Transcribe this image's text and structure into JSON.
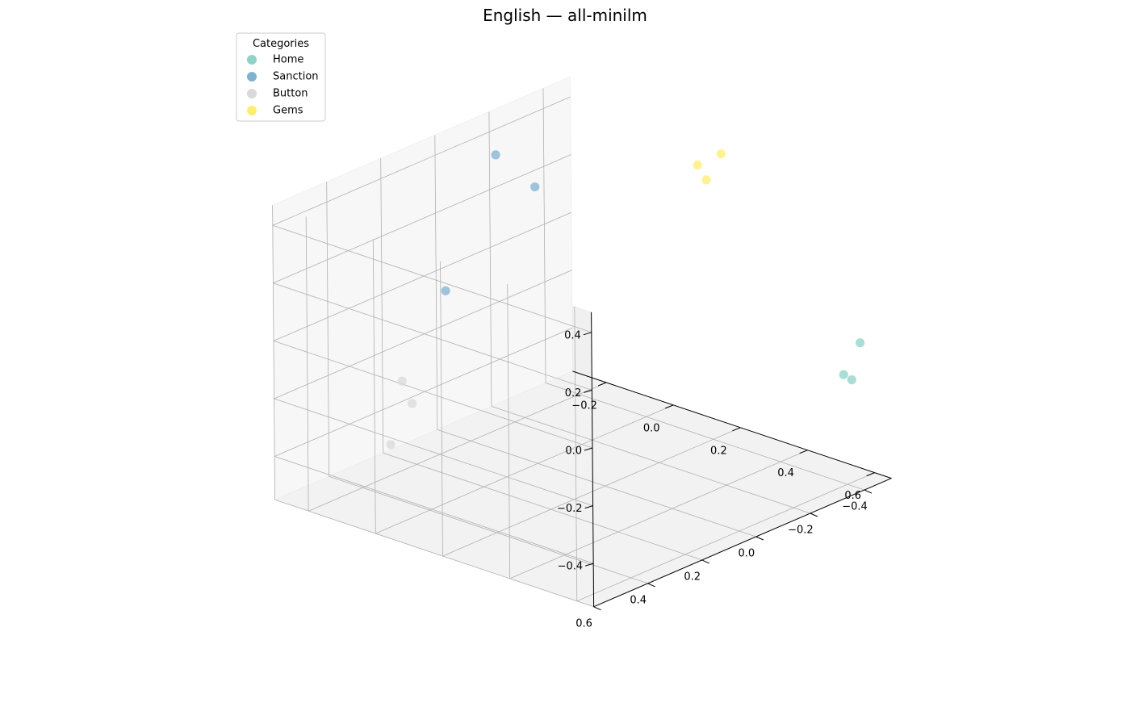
{
  "chart_data": {
    "type": "scatter",
    "projection": "3d",
    "title": "English — all-minilm",
    "legend": {
      "title": "Categories",
      "position": "top-left"
    },
    "grid": true,
    "x_ticks": [
      "−0.4",
      "−0.2",
      "0.0",
      "0.2",
      "0.4",
      "0.6"
    ],
    "y_ticks": [
      "−0.2",
      "0.0",
      "0.2",
      "0.4",
      "0.6"
    ],
    "z_ticks": [
      "−0.4",
      "−0.2",
      "0.0",
      "0.2",
      "0.4"
    ],
    "xlim": [
      -0.5,
      0.6
    ],
    "ylim": [
      -0.3,
      0.65
    ],
    "zlim": [
      -0.55,
      0.47
    ],
    "series": [
      {
        "name": "Home",
        "color": "#8dd3c7",
        "points": [
          [
            -0.45,
            0.6,
            -0.08
          ],
          [
            -0.48,
            0.55,
            -0.24
          ],
          [
            -0.45,
            0.55,
            -0.21
          ]
        ]
      },
      {
        "name": "Sanction",
        "color": "#80b1d3",
        "points": [
          [
            -0.12,
            -0.1,
            0.32
          ],
          [
            -0.1,
            -0.2,
            0.4
          ],
          [
            0.15,
            -0.15,
            0.05
          ]
        ]
      },
      {
        "name": "Button",
        "color": "#d9d9d9",
        "points": [
          [
            0.4,
            -0.05,
            -0.2
          ],
          [
            0.35,
            -0.12,
            -0.17
          ],
          [
            0.48,
            -0.05,
            -0.31
          ]
        ]
      },
      {
        "name": "Gems",
        "color": "#ffed6f",
        "points": [
          [
            -0.32,
            0.25,
            0.4
          ],
          [
            -0.35,
            0.2,
            0.42
          ],
          [
            -0.4,
            0.23,
            0.45
          ]
        ]
      }
    ]
  }
}
